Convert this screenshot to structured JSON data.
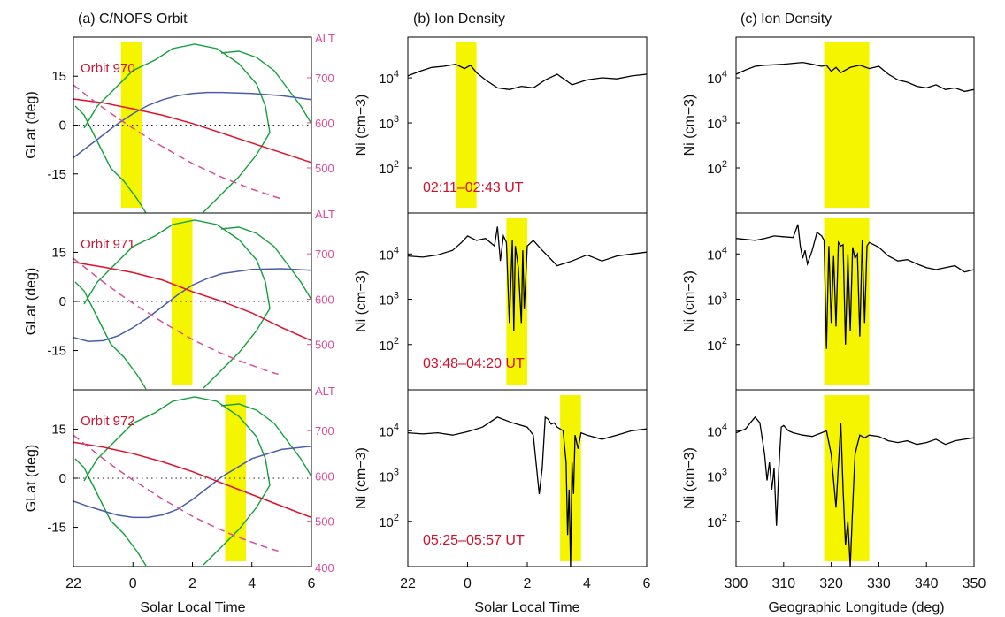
{
  "colors": {
    "highlight": "#f5f500",
    "orbit_red": "#e0102a",
    "orbit_blue": "#4a5ea8",
    "alt_pink": "#d64e97",
    "land": "#12a03c",
    "text_red": "#d0102a"
  },
  "panel_titles": [
    "(a) C/NOFS Orbit",
    "(b) Ion Density",
    "(c) Ion Density"
  ],
  "orbit_labels": [
    "Orbit 970",
    "Orbit 971",
    "Orbit 972"
  ],
  "time_labels": [
    "02:11–02:43 UT",
    "03:48–04:20 UT",
    "05:25–05:57 UT"
  ],
  "chart_data": [
    {
      "type": "line",
      "title": "(a) C/NOFS Orbit",
      "xlabel": "Solar Local Time",
      "ylabel": "GLat (deg)",
      "right_axis_label": "ALT",
      "x_ticks": [
        "22",
        "0",
        "2",
        "4",
        "6"
      ],
      "xlim": [
        22,
        30
      ],
      "y_ticks": [
        "15",
        "0",
        "-15"
      ],
      "ylim": [
        -27,
        27
      ],
      "right_ticks": [
        "700",
        "600",
        "500",
        "400"
      ],
      "right_lim": [
        400,
        790
      ],
      "panels": [
        {
          "orbit": "Orbit 970",
          "highlight": [
            23.6,
            24.3
          ],
          "red": {
            "x": [
              22,
              23,
              24,
              25,
              26,
              27,
              28,
              29,
              30
            ],
            "y": [
              8,
              6.8,
              5,
              3,
              0.5,
              -2.5,
              -5.5,
              -8.5,
              -11.5
            ]
          },
          "blue": {
            "x": [
              22,
              22.5,
              23,
              23.5,
              24,
              24.5,
              25,
              25.5,
              26,
              26.5,
              27,
              28,
              29,
              30
            ],
            "y": [
              -10,
              -6.5,
              -3,
              0.5,
              3.5,
              6,
              7.8,
              9,
              9.7,
              10,
              10,
              9.7,
              9,
              7.8
            ]
          },
          "pink_alt": {
            "x": [
              22,
              22.5,
              23,
              23.5,
              24,
              24.5,
              25,
              25.5,
              26,
              26.5,
              27,
              27.5,
              28,
              28.5,
              29
            ],
            "y": [
              684,
              658,
              633,
              610,
              588,
              567,
              547,
              528,
              510,
              494,
              479,
              466,
              453,
              442,
              431
            ]
          }
        },
        {
          "orbit": "Orbit 971",
          "highlight": [
            25.3,
            26.0
          ],
          "red": {
            "x": [
              22,
              23,
              24,
              25,
              26,
              27,
              28,
              29,
              30
            ],
            "y": [
              12,
              10.5,
              8.8,
              6.5,
              3,
              0,
              -3.5,
              -8,
              -12
            ]
          },
          "blue": {
            "x": [
              22,
              22.5,
              23,
              23.5,
              24,
              24.5,
              25,
              25.5,
              26,
              26.5,
              27,
              28,
              29,
              30
            ],
            "y": [
              -11,
              -12.2,
              -12,
              -10.5,
              -8,
              -5,
              -1.5,
              2,
              5,
              7,
              8.5,
              9.8,
              10,
              9.5
            ]
          },
          "pink_alt": {
            "x": [
              22,
              22.5,
              23,
              23.5,
              24,
              24.5,
              25,
              25.5,
              26,
              26.5,
              27,
              27.5,
              28,
              28.5,
              29
            ],
            "y": [
              690,
              664,
              638,
              614,
              591,
              570,
              549,
              530,
              511,
              495,
              480,
              466,
              454,
              442,
              432
            ]
          }
        },
        {
          "orbit": "Orbit 972",
          "highlight": [
            27.1,
            27.8
          ],
          "red": {
            "x": [
              22,
              23,
              24,
              25,
              26,
              27,
              28,
              29,
              30
            ],
            "y": [
              11,
              9.5,
              7.5,
              5,
              2,
              -1.5,
              -5,
              -8.5,
              -12
            ]
          },
          "blue": {
            "x": [
              22,
              22.5,
              23,
              23.5,
              24,
              24.5,
              25,
              25.5,
              26,
              26.5,
              27,
              28,
              29,
              30
            ],
            "y": [
              -7,
              -8.6,
              -10,
              -11.3,
              -12,
              -12,
              -11.2,
              -9.5,
              -6.5,
              -3,
              0.5,
              6,
              8.8,
              9.8
            ]
          },
          "pink_alt": {
            "x": [
              22,
              22.5,
              23,
              23.5,
              24,
              24.5,
              25,
              25.5,
              26,
              26.5,
              27,
              27.5,
              28,
              28.5,
              29
            ],
            "y": [
              690,
              664,
              638,
              614,
              591,
              570,
              549,
              530,
              511,
              495,
              480,
              466,
              454,
              442,
              432
            ]
          }
        }
      ]
    },
    {
      "type": "line",
      "title": "(b) Ion Density",
      "xlabel": "Solar Local Time",
      "ylabel": "Ni (cm−3)",
      "yscale": "log",
      "x_ticks": [
        "22",
        "0",
        "2",
        "4",
        "6"
      ],
      "xlim": [
        22,
        30
      ],
      "y_ticks": [
        "10^4",
        "10^3",
        "10^2"
      ],
      "ylim": [
        10,
        80000
      ],
      "panels": [
        {
          "highlight": [
            23.6,
            24.3
          ],
          "x": [
            22,
            22.4,
            22.8,
            23.2,
            23.6,
            23.9,
            24.1,
            24.3,
            24.6,
            25.0,
            25.4,
            25.8,
            26.2,
            26.6,
            27.0,
            27.5,
            28.0,
            28.5,
            29.0,
            29.5,
            30
          ],
          "y": [
            11000,
            14000,
            17000,
            18000,
            20000,
            16000,
            19000,
            13000,
            9000,
            6000,
            5500,
            6500,
            6000,
            9000,
            12000,
            7000,
            9000,
            10000,
            9500,
            11000,
            12000
          ]
        },
        {
          "highlight": [
            25.3,
            26.0
          ],
          "x": [
            22,
            22.5,
            23,
            23.5,
            23.8,
            24.0,
            24.3,
            24.6,
            24.9,
            25.0,
            25.1,
            25.2,
            25.3,
            25.4,
            25.5,
            25.55,
            25.6,
            25.7,
            25.8,
            25.85,
            25.9,
            26.0,
            26.2,
            26.5,
            27,
            27.5,
            28,
            28.5,
            29,
            29.5,
            30
          ],
          "y": [
            9000,
            8500,
            9500,
            12000,
            18000,
            25000,
            20000,
            22000,
            15000,
            40000,
            7000,
            25000,
            18000,
            300,
            20000,
            200,
            15000,
            5000,
            300,
            12000,
            600,
            15000,
            20000,
            12000,
            5500,
            7000,
            9500,
            7000,
            9000,
            10000,
            11000
          ],
          "type": "log"
        },
        {
          "highlight": [
            27.1,
            27.8
          ],
          "x": [
            22,
            22.5,
            23,
            23.5,
            24,
            24.5,
            25,
            25.5,
            26,
            26.2,
            26.4,
            26.5,
            26.6,
            26.7,
            26.8,
            26.9,
            27.0,
            27.2,
            27.3,
            27.35,
            27.4,
            27.45,
            27.5,
            27.55,
            27.6,
            27.7,
            27.8,
            28,
            28.5,
            29,
            29.5,
            30
          ],
          "y": [
            9000,
            8500,
            9000,
            8000,
            9500,
            12000,
            20000,
            15000,
            12000,
            8000,
            400,
            1500,
            20000,
            18000,
            14000,
            15000,
            12000,
            10000,
            2000,
            50,
            500,
            10,
            2000,
            400,
            8000,
            4000,
            9000,
            8000,
            6500,
            8000,
            10000,
            11000
          ]
        }
      ]
    },
    {
      "type": "line",
      "title": "(c) Ion Density",
      "xlabel": "Geographic Longitude (deg)",
      "ylabel": "Ni (cm−3)",
      "yscale": "log",
      "x_ticks": [
        "300",
        "310",
        "320",
        "330",
        "340",
        "350"
      ],
      "xlim": [
        300,
        350
      ],
      "y_ticks": [
        "10^4",
        "10^3",
        "10^2"
      ],
      "ylim": [
        10,
        80000
      ],
      "panels": [
        {
          "highlight": [
            318.5,
            328
          ],
          "x": [
            300,
            302,
            304,
            306,
            308,
            310,
            312,
            314,
            316,
            318,
            319,
            320,
            321,
            322,
            324,
            326,
            328,
            330,
            332,
            334,
            336,
            338,
            340,
            342,
            344,
            346,
            348,
            350
          ],
          "y": [
            12000,
            15000,
            18000,
            19000,
            19500,
            20000,
            21000,
            22000,
            20000,
            18000,
            19000,
            14000,
            17000,
            13000,
            17000,
            19000,
            16000,
            18000,
            12000,
            9000,
            8000,
            6500,
            6000,
            7000,
            5500,
            6000,
            5000,
            5500
          ]
        },
        {
          "highlight": [
            318.5,
            328
          ],
          "x": [
            300,
            302,
            304,
            306,
            308,
            310,
            312,
            313,
            313.5,
            314,
            314.5,
            315,
            316,
            317,
            318,
            318.5,
            319,
            319.5,
            320,
            320.5,
            321,
            321.5,
            322,
            322.5,
            323,
            323.5,
            324,
            324.5,
            325,
            325.5,
            326,
            326.5,
            327,
            327.5,
            328,
            330,
            332,
            334,
            336,
            338,
            340,
            342,
            344,
            346,
            348,
            350
          ],
          "y": [
            22000,
            21000,
            20000,
            22000,
            25000,
            24000,
            23000,
            45000,
            15000,
            8000,
            12000,
            6000,
            12000,
            30000,
            25000,
            20000,
            80,
            15000,
            300,
            9000,
            250,
            18000,
            15000,
            16000,
            100,
            10000,
            200,
            14000,
            8000,
            10000,
            150,
            20000,
            300,
            15000,
            18000,
            14000,
            9000,
            7000,
            7500,
            6000,
            5000,
            4500,
            5000,
            5500,
            4000,
            4500
          ]
        },
        {
          "highlight": [
            318.5,
            328
          ],
          "x": [
            300,
            302,
            303,
            304,
            305,
            306,
            306.5,
            307,
            307.5,
            308,
            308.5,
            309,
            309.5,
            310,
            311,
            312,
            314,
            316,
            318,
            319,
            320,
            321,
            322,
            322.5,
            323,
            323.5,
            324,
            324.5,
            325,
            325.5,
            326,
            327,
            328,
            330,
            332,
            334,
            336,
            338,
            340,
            342,
            344,
            346,
            348,
            350
          ],
          "y": [
            9000,
            11000,
            15000,
            20000,
            15000,
            3000,
            800,
            2000,
            500,
            1500,
            80,
            1500,
            12000,
            13000,
            10000,
            9000,
            8000,
            7500,
            9000,
            10000,
            3000,
            200,
            15000,
            500,
            30,
            100,
            10,
            200,
            3000,
            5000,
            8000,
            7000,
            8000,
            7500,
            6000,
            5500,
            6000,
            5000,
            5500,
            6500,
            5000,
            6000,
            6500,
            7000
          ]
        }
      ]
    }
  ]
}
